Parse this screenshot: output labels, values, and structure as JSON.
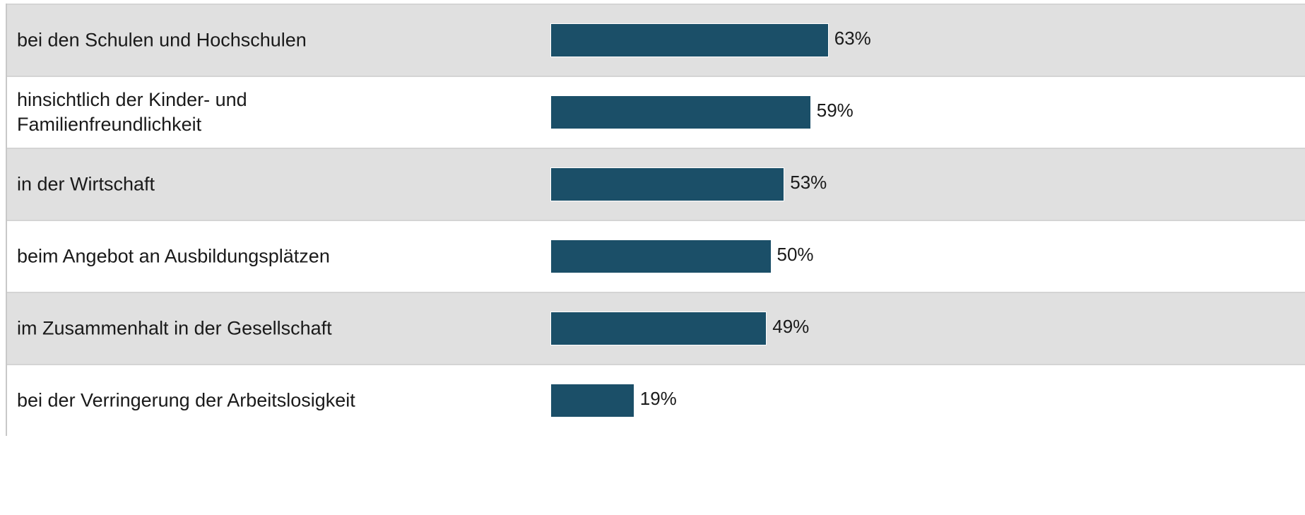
{
  "chart_data": {
    "type": "bar",
    "orientation": "horizontal",
    "categories": [
      "bei den Schulen und Hochschulen",
      "hinsichtlich der Kinder- und Familienfreundlichkeit",
      "in der Wirtschaft",
      "beim Angebot an Ausbildungsplätzen",
      "im Zusammenhalt in der Gesellschaft",
      "bei der Verringerung der Arbeitslosigkeit"
    ],
    "values": [
      63,
      59,
      53,
      50,
      49,
      19
    ],
    "value_labels": [
      "63%",
      "59%",
      "53%",
      "50%",
      "49%",
      "19%"
    ],
    "color": "#1b4f68"
  }
}
